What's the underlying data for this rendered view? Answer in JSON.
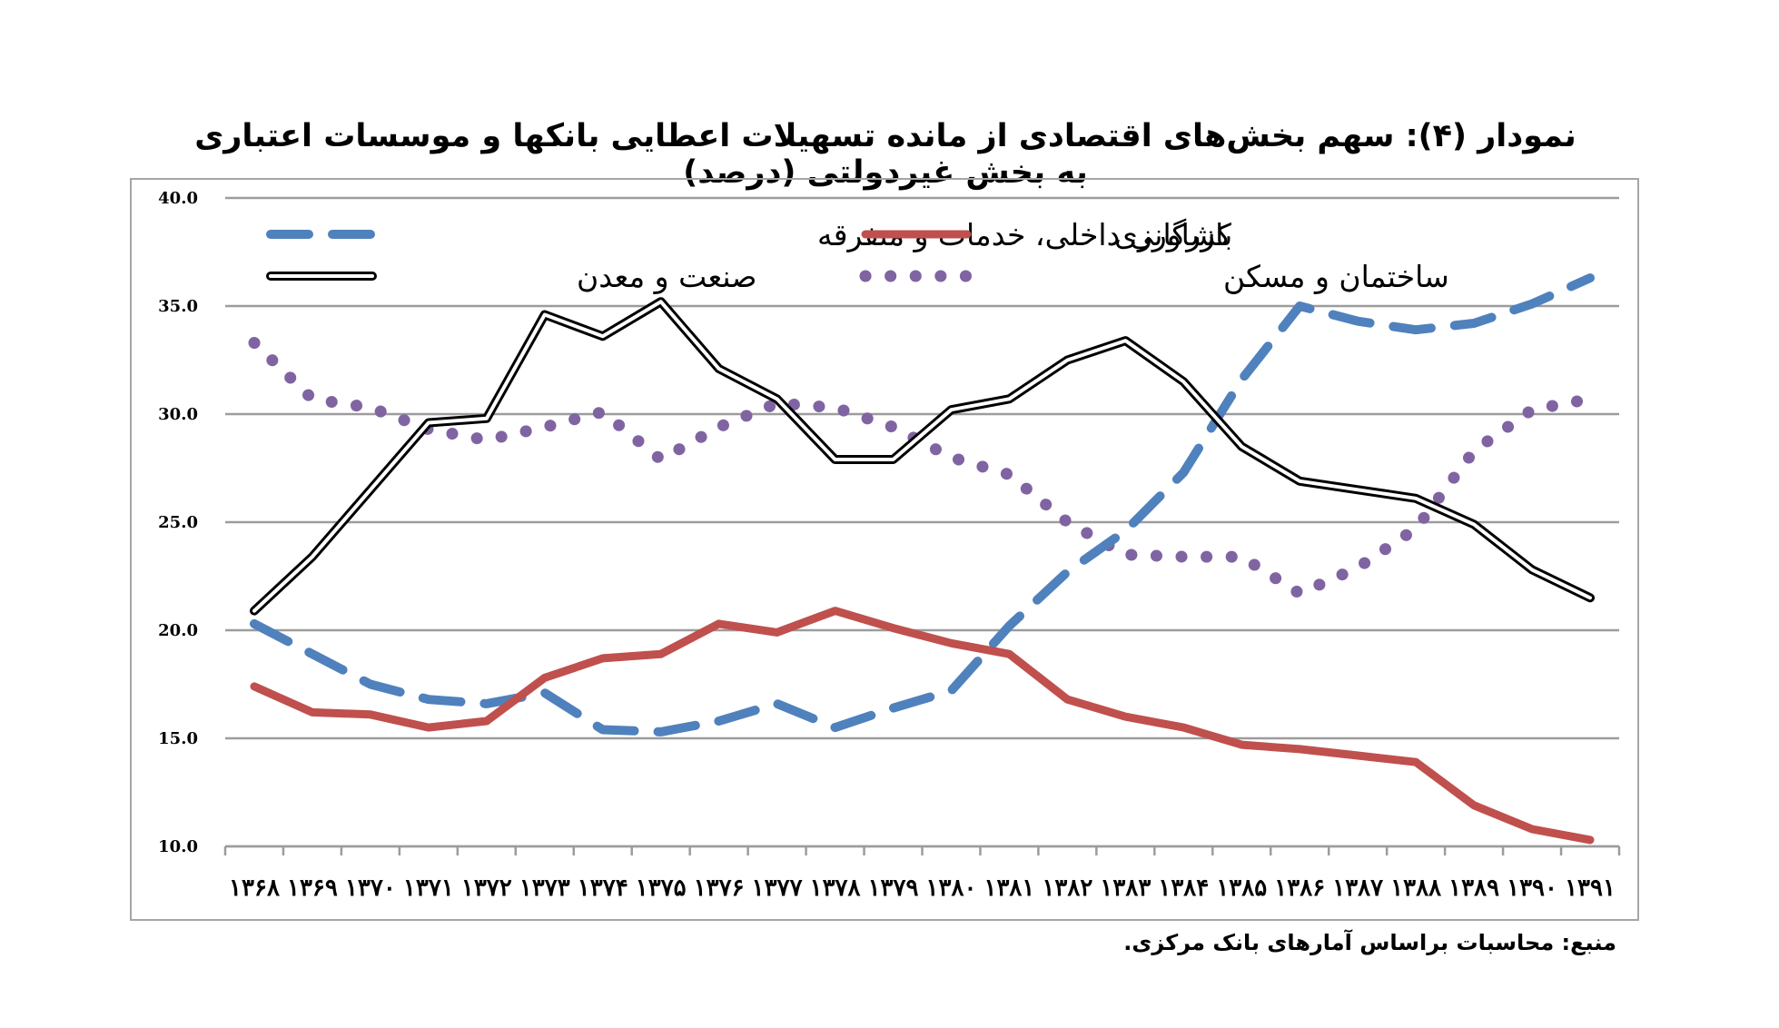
{
  "chart_data": {
    "type": "line",
    "title": "نمودار (۴): سهم بخش‌های اقتصادی از مانده تسهیلات اعطایی بانکها و موسسات اعتباری به بخش غیردولتی (درصد)",
    "source": "منبع: محاسبات براساس آمارهای بانک مرکزی.",
    "xlabel": "",
    "ylabel": "",
    "ylim": [
      10,
      40
    ],
    "yticks": [
      "10.0",
      "15.0",
      "20.0",
      "25.0",
      "30.0",
      "35.0",
      "40.0"
    ],
    "ytick_values": [
      10,
      15,
      20,
      25,
      30,
      35,
      40
    ],
    "grid": true,
    "legend_position": "top",
    "categories": [
      "۱۳۶۸",
      "۱۳۶۹",
      "۱۳۷۰",
      "۱۳۷۱",
      "۱۳۷۲",
      "۱۳۷۳",
      "۱۳۷۴",
      "۱۳۷۵",
      "۱۳۷۶",
      "۱۳۷۷",
      "۱۳۷۸",
      "۱۳۷۹",
      "۱۳۸۰",
      "۱۳۸۱",
      "۱۳۸۲",
      "۱۳۸۳",
      "۱۳۸۴",
      "۱۳۸۵",
      "۱۳۸۶",
      "۱۳۸۷",
      "۱۳۸۸",
      "۱۳۸۹",
      "۱۳۹۰",
      "۱۳۹۱"
    ],
    "series": [
      {
        "name": "بازرگانی داخلی، خدمات و متفرقه",
        "color": "#4f81bd",
        "style": "dashed",
        "values": [
          20.3,
          18.9,
          17.5,
          16.8,
          16.6,
          17.1,
          15.4,
          15.3,
          15.8,
          16.6,
          15.5,
          16.4,
          17.2,
          20.2,
          22.7,
          24.6,
          27.3,
          31.6,
          35.0,
          34.3,
          33.9,
          34.2,
          35.1,
          36.3
        ]
      },
      {
        "name": "کشاورزی",
        "color": "#c0504d",
        "style": "solid",
        "values": [
          17.4,
          16.2,
          16.1,
          15.5,
          15.8,
          17.8,
          18.7,
          18.9,
          20.3,
          19.9,
          20.9,
          20.1,
          19.4,
          18.9,
          16.8,
          16.0,
          15.5,
          14.7,
          14.5,
          14.2,
          13.9,
          11.9,
          10.8,
          10.3
        ]
      },
      {
        "name": "صنعت و معدن",
        "color": "#000000",
        "style": "double",
        "values": [
          20.9,
          23.4,
          26.5,
          29.6,
          29.8,
          34.6,
          33.6,
          35.2,
          32.1,
          30.7,
          27.9,
          27.9,
          30.2,
          30.7,
          32.5,
          33.4,
          31.5,
          28.5,
          26.9,
          26.5,
          26.1,
          24.9,
          22.8,
          21.5
        ]
      },
      {
        "name": "ساختمان و مسکن",
        "color": "#8064a2",
        "style": "dotted",
        "values": [
          33.3,
          30.7,
          30.3,
          29.3,
          28.8,
          29.4,
          30.1,
          27.9,
          29.4,
          30.5,
          30.3,
          29.4,
          28.0,
          27.2,
          25.0,
          23.5,
          23.4,
          23.4,
          21.7,
          22.9,
          24.7,
          28.3,
          30.2,
          30.7
        ]
      }
    ]
  }
}
